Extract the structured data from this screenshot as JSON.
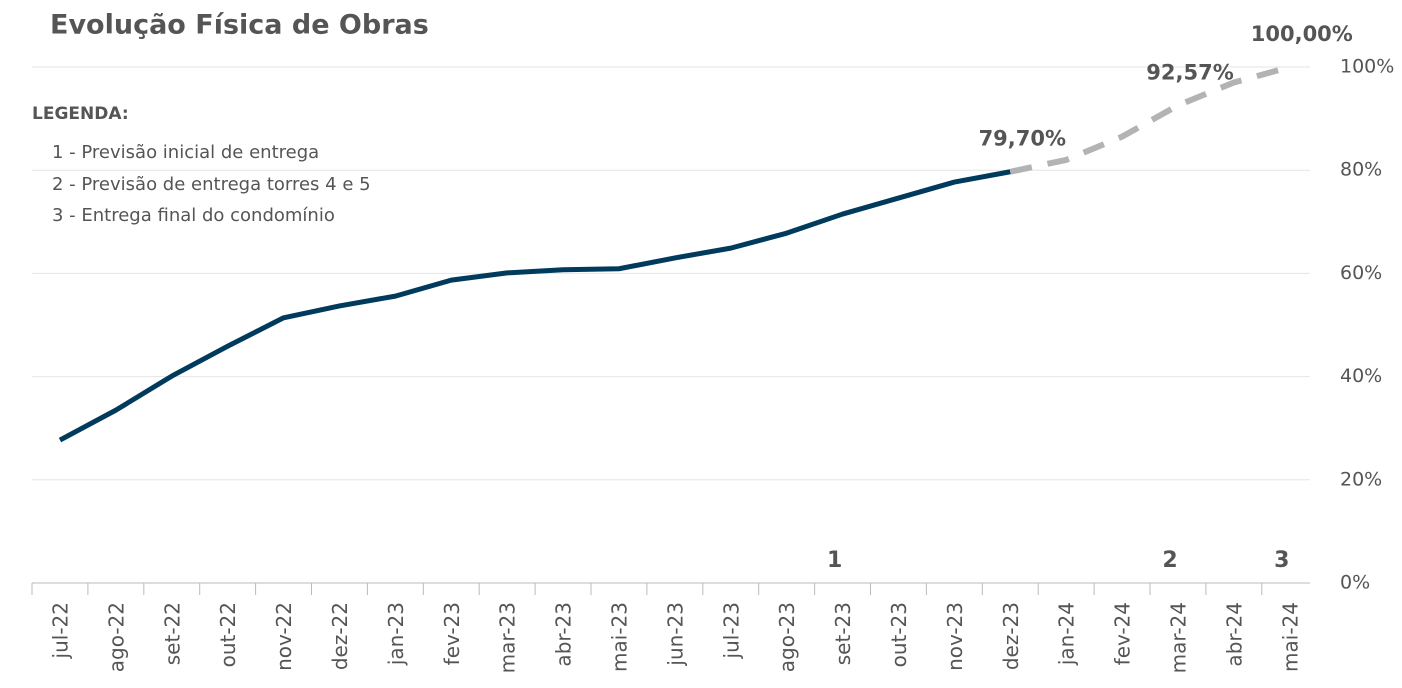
{
  "chart_data": {
    "type": "line",
    "title": "Evolução Física de Obras",
    "legend_box": {
      "heading": "LEGENDA:",
      "items": [
        "1 -  Previsão inicial de entrega",
        "2 - Previsão de entrega torres 4 e 5",
        "3 - Entrega final do condomínio"
      ]
    },
    "categories": [
      "jul-22",
      "ago-22",
      "set-22",
      "out-22",
      "nov-22",
      "dez-22",
      "jan-23",
      "fev-23",
      "mar-23",
      "abr-23",
      "mai-23",
      "jun-23",
      "jul-23",
      "ago-23",
      "set-23",
      "out-23",
      "nov-23",
      "dez-23",
      "jan-24",
      "fev-24",
      "mar-24",
      "abr-24",
      "mai-24"
    ],
    "series": [
      {
        "color": "#003a5c",
        "dashed": false,
        "values": [
          27.7,
          33.5,
          40.1,
          45.9,
          51.4,
          53.7,
          55.6,
          58.7,
          60.1,
          60.7,
          60.9,
          63.0,
          64.9,
          67.8,
          71.5,
          74.6,
          77.7,
          79.7,
          null,
          null,
          null,
          null,
          null
        ],
        "value_labels": [
          null,
          null,
          null,
          null,
          null,
          null,
          null,
          null,
          null,
          null,
          null,
          null,
          null,
          null,
          null,
          null,
          null,
          "79,70%",
          null,
          null,
          null,
          null,
          null
        ],
        "label_color": "#003a5c"
      },
      {
        "color": "#b3b3b3",
        "dashed": true,
        "values": [
          null,
          null,
          null,
          null,
          null,
          null,
          null,
          null,
          null,
          null,
          null,
          null,
          null,
          null,
          null,
          null,
          null,
          79.7,
          82.0,
          86.5,
          92.57,
          97.0,
          100.0
        ],
        "value_labels": [
          null,
          null,
          null,
          null,
          null,
          null,
          null,
          null,
          null,
          null,
          null,
          null,
          null,
          null,
          null,
          null,
          null,
          null,
          null,
          null,
          "92,57%",
          null,
          "100,00%"
        ],
        "label_color": "#555555"
      }
    ],
    "markers": [
      {
        "x": "set-23",
        "label": "1"
      },
      {
        "x": "mar-24",
        "label": "2"
      },
      {
        "x": "mai-24",
        "label": "3"
      }
    ],
    "ylim": [
      0,
      100
    ],
    "yticks": [
      {
        "value": 0,
        "label": "0%"
      },
      {
        "value": 20,
        "label": "20%"
      },
      {
        "value": 40,
        "label": "40%"
      },
      {
        "value": 60,
        "label": "60%"
      },
      {
        "value": 80,
        "label": "80%"
      },
      {
        "value": 100,
        "label": "100%"
      }
    ],
    "grid": true
  }
}
